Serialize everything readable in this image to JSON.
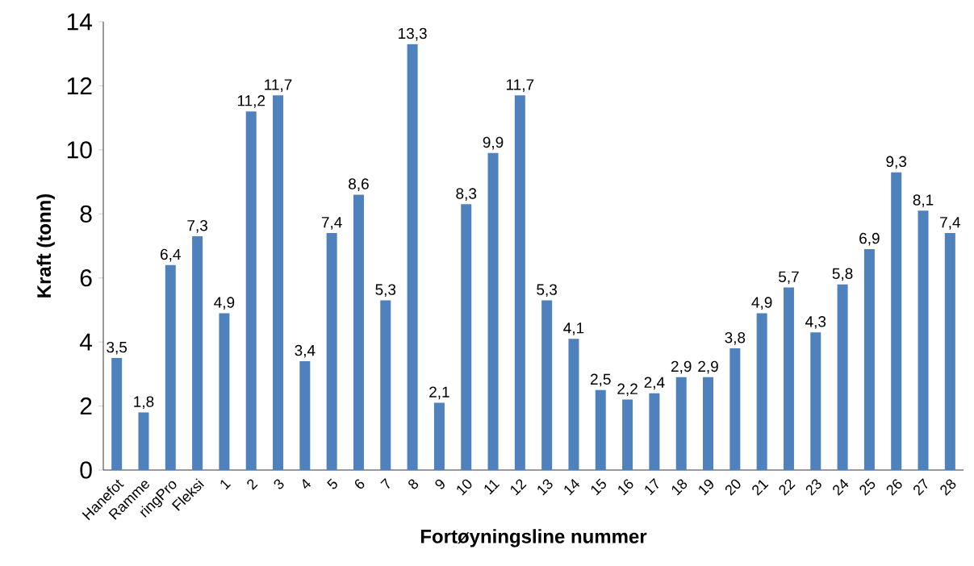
{
  "chart_data": {
    "type": "bar",
    "xlabel": "Fortøyningsline nummer",
    "ylabel": "Kraft (tonn)",
    "categories": [
      "Hanefot",
      "Ramme",
      "ringPro",
      "Fleksi",
      "1",
      "2",
      "3",
      "4",
      "5",
      "6",
      "7",
      "8",
      "9",
      "10",
      "11",
      "12",
      "13",
      "14",
      "15",
      "16",
      "17",
      "18",
      "19",
      "20",
      "21",
      "22",
      "23",
      "24",
      "25",
      "26",
      "27",
      "28"
    ],
    "values": [
      3.5,
      1.8,
      6.4,
      7.3,
      4.9,
      11.2,
      11.7,
      3.4,
      7.4,
      8.6,
      5.3,
      13.3,
      2.1,
      8.3,
      9.9,
      11.7,
      5.3,
      4.1,
      2.5,
      2.2,
      2.4,
      2.9,
      2.9,
      3.8,
      4.9,
      5.7,
      4.3,
      5.8,
      6.9,
      9.3,
      8.1,
      7.4
    ],
    "value_labels": [
      "3,5",
      "1,8",
      "6,4",
      "7,3",
      "4,9",
      "11,2",
      "11,7",
      "3,4",
      "7,4",
      "8,6",
      "5,3",
      "13,3",
      "2,1",
      "8,3",
      "9,9",
      "11,7",
      "5,3",
      "4,1",
      "2,5",
      "2,2",
      "2,4",
      "2,9",
      "2,9",
      "3,8",
      "4,9",
      "5,7",
      "4,3",
      "5,8",
      "6,9",
      "9,3",
      "8,1",
      "7,4"
    ],
    "color": "#4f81bd",
    "ylim": [
      0,
      14
    ],
    "yticks": [
      0,
      2,
      4,
      6,
      8,
      10,
      12,
      14
    ],
    "grid": false
  }
}
